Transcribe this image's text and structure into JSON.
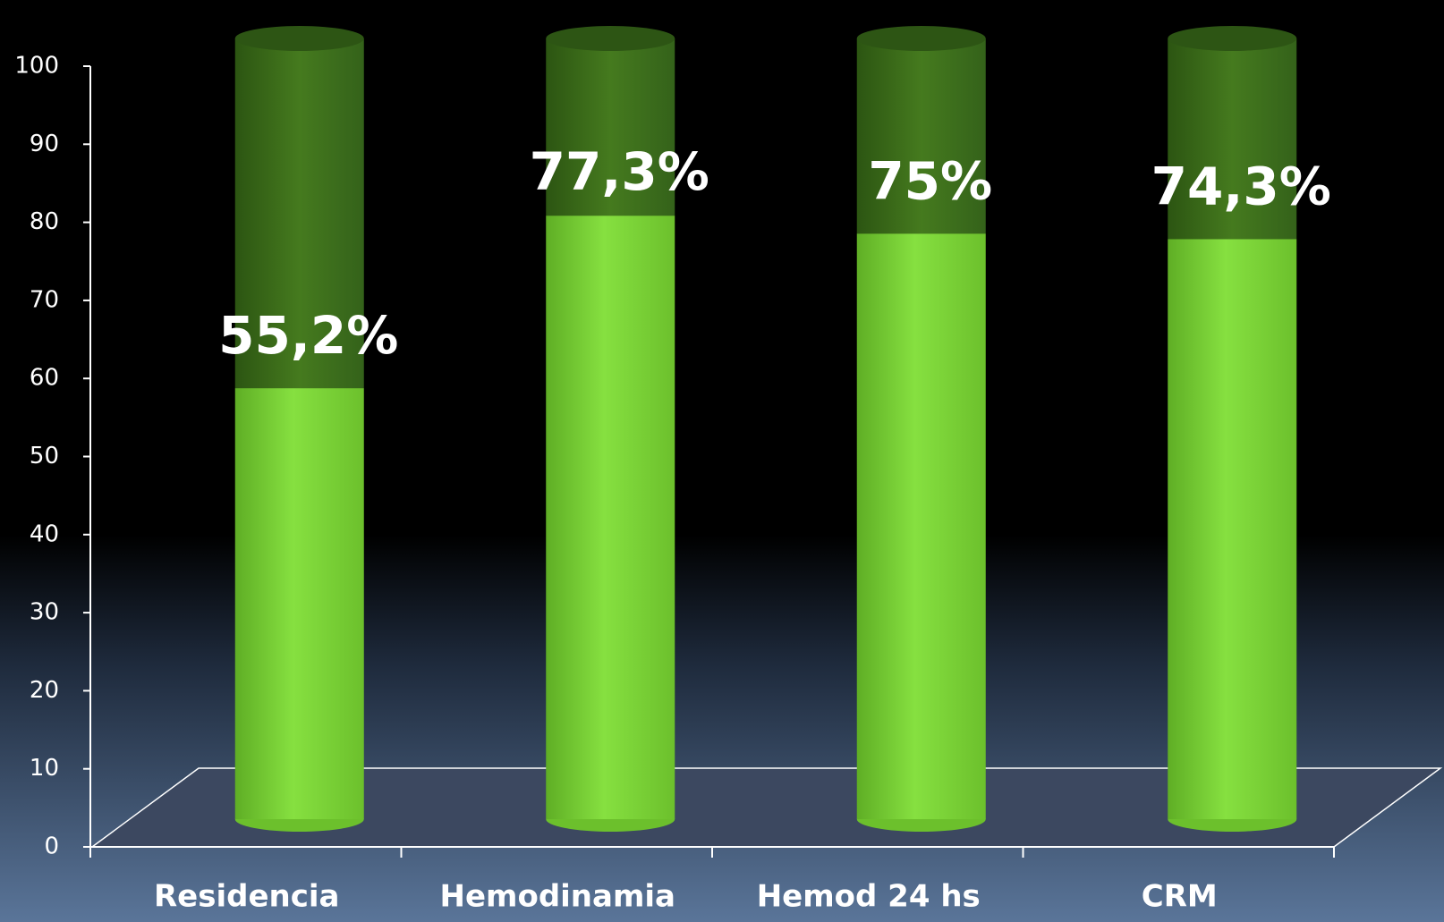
{
  "chart_data": {
    "type": "cylinder",
    "categories": [
      "Residencia",
      "Hemodinamia",
      "Hemod 24 hs",
      "CRM"
    ],
    "values": [
      55.2,
      77.3,
      75,
      74.3
    ],
    "value_labels": [
      "55,2%",
      "77,3%",
      "75%",
      "74,3%"
    ],
    "color": "#80d83c",
    "ylim": [
      0,
      100
    ],
    "yticks": [
      0,
      10,
      20,
      30,
      40,
      50,
      60,
      70,
      80,
      90,
      100
    ]
  }
}
